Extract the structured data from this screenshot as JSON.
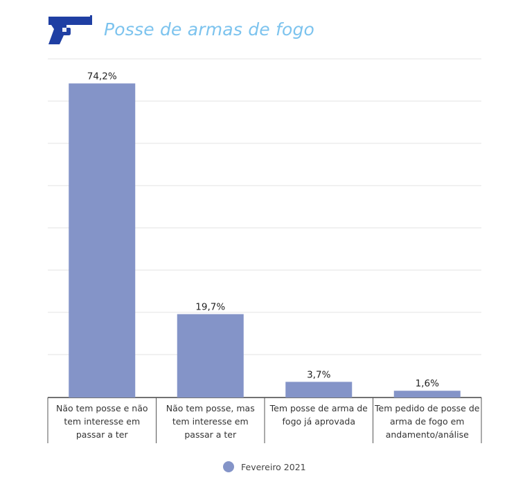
{
  "title": "Posse de armas de fogo",
  "icon": "pistol-icon",
  "colors": {
    "bar": "#8494c8",
    "title": "#7cc3ee",
    "icon": "#1f3fa3"
  },
  "legend": {
    "label": "Fevereiro 2021"
  },
  "chart_data": {
    "type": "bar",
    "title": "Posse de armas de fogo",
    "categories": [
      "Não tem posse e não tem interesse em passar a ter",
      "Não tem posse, mas tem interesse em passar a ter",
      "Tem posse de arma de fogo já aprovada",
      "Tem pedido de posse de arma de fogo em andamento/análise"
    ],
    "series": [
      {
        "name": "Fevereiro 2021",
        "values": [
          74.2,
          19.7,
          3.7,
          1.6
        ]
      }
    ],
    "data_labels": [
      "74,2%",
      "19,7%",
      "3,7%",
      "1,6%"
    ],
    "ylim": [
      0,
      80
    ],
    "grid": true,
    "legend_position": "bottom"
  }
}
